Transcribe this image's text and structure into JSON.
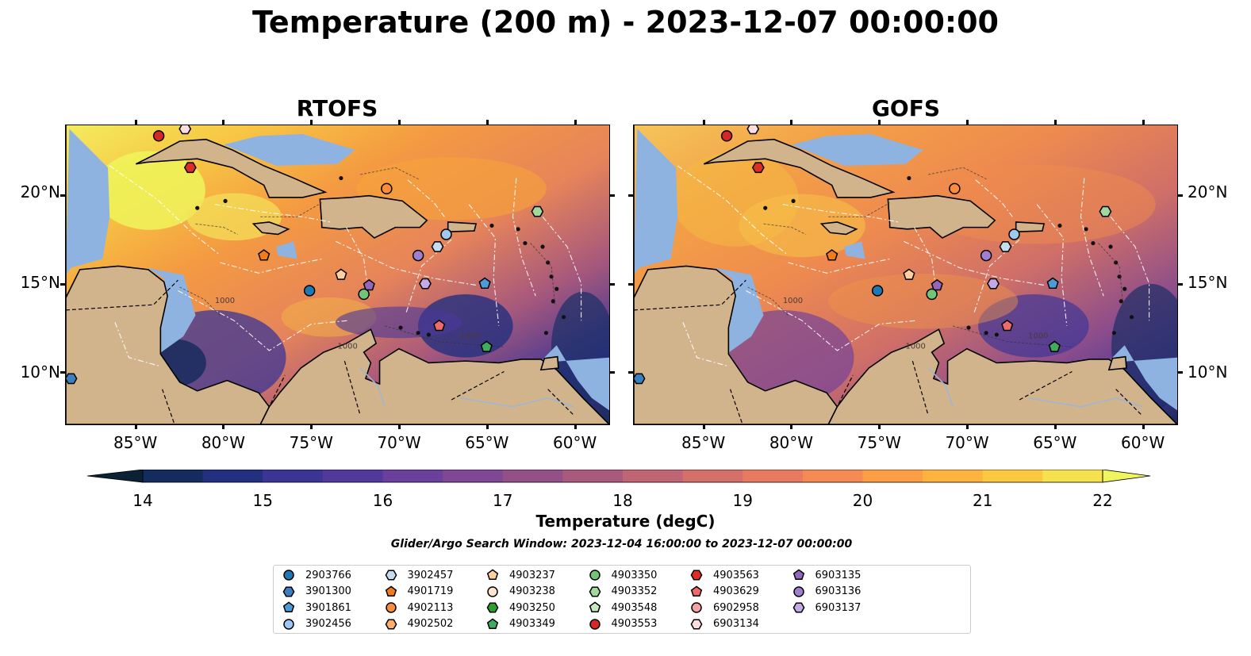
{
  "title": "Temperature (200 m) - 2023-12-07 00:00:00",
  "panels": [
    {
      "title": "RTOFS",
      "variant": "rtofs"
    },
    {
      "title": "GOFS",
      "variant": "gofs"
    }
  ],
  "map": {
    "lon_range": [
      -89,
      -58
    ],
    "lat_range": [
      7,
      24
    ],
    "lat_ticks": [
      "20°N",
      "15°N",
      "10°N"
    ],
    "lon_ticks": [
      "85°W",
      "80°W",
      "75°W",
      "70°W",
      "65°W",
      "60°W"
    ],
    "land_color": "#d2b48c",
    "shelf_color": "#8fb3e0",
    "contour_label": "1000"
  },
  "colorbar": {
    "label": "Temperature (degC)",
    "min": 14,
    "max": 22,
    "ticks": [
      "14",
      "15",
      "16",
      "17",
      "18",
      "19",
      "20",
      "21",
      "22"
    ],
    "colors": [
      "#0b2236",
      "#142c5e",
      "#23307f",
      "#3b3596",
      "#54399c",
      "#6b3f9c",
      "#7f4794",
      "#935088",
      "#a85a7e",
      "#c06574",
      "#d56f6a",
      "#e67b5f",
      "#f38b52",
      "#fb9e45",
      "#fdb33d",
      "#fbc93f",
      "#f5e14e",
      "#f0f55f"
    ]
  },
  "search_window": "Glider/Argo Search Window: 2023-12-04 16:00:00 to 2023-12-07 00:00:00",
  "legend": [
    {
      "id": "2903766",
      "shape": "circle",
      "color": "#1f77b4"
    },
    {
      "id": "3901300",
      "shape": "hexagon",
      "color": "#3a7fc0"
    },
    {
      "id": "3901861",
      "shape": "pentagon",
      "color": "#4d9ad6"
    },
    {
      "id": "3902456",
      "shape": "circle",
      "color": "#9ec8f0"
    },
    {
      "id": "3902457",
      "shape": "hexagon",
      "color": "#c6dbef"
    },
    {
      "id": "4901719",
      "shape": "pentagon",
      "color": "#f07c1a"
    },
    {
      "id": "4902113",
      "shape": "circle",
      "color": "#fd8d3c"
    },
    {
      "id": "4902502",
      "shape": "hexagon",
      "color": "#fdae6b"
    },
    {
      "id": "4903237",
      "shape": "pentagon",
      "color": "#fdd0a2"
    },
    {
      "id": "4903238",
      "shape": "circle",
      "color": "#fee6ce"
    },
    {
      "id": "4903250",
      "shape": "hexagon",
      "color": "#2ca02c"
    },
    {
      "id": "4903349",
      "shape": "pentagon",
      "color": "#41ab5d"
    },
    {
      "id": "4903350",
      "shape": "circle",
      "color": "#74c476"
    },
    {
      "id": "4903352",
      "shape": "hexagon",
      "color": "#a1d99b"
    },
    {
      "id": "4903548",
      "shape": "pentagon",
      "color": "#c7e9c0"
    },
    {
      "id": "4903553",
      "shape": "circle",
      "color": "#d62728"
    },
    {
      "id": "4903563",
      "shape": "hexagon",
      "color": "#de2d26"
    },
    {
      "id": "4903629",
      "shape": "pentagon",
      "color": "#ef6b6b"
    },
    {
      "id": "6902958",
      "shape": "circle",
      "color": "#f4a3a3"
    },
    {
      "id": "6903134",
      "shape": "hexagon",
      "color": "#fcdede"
    },
    {
      "id": "6903135",
      "shape": "pentagon",
      "color": "#9467bd"
    },
    {
      "id": "6903136",
      "shape": "circle",
      "color": "#a17fd0"
    },
    {
      "id": "6903137",
      "shape": "hexagon",
      "color": "#c5a8e8"
    }
  ],
  "floats": [
    {
      "id": "4903553",
      "lon": -83.7,
      "lat": 23.4
    },
    {
      "id": "6903134",
      "lon": -82.2,
      "lat": 23.8
    },
    {
      "id": "4903563",
      "lon": -81.9,
      "lat": 21.6
    },
    {
      "id": "4902113",
      "lon": -70.7,
      "lat": 20.4
    },
    {
      "id": "4903352",
      "lon": -62.1,
      "lat": 19.1
    },
    {
      "id": "3902456",
      "lon": -67.3,
      "lat": 17.8
    },
    {
      "id": "3902457",
      "lon": -67.8,
      "lat": 17.1
    },
    {
      "id": "6903136",
      "lon": -68.9,
      "lat": 16.6
    },
    {
      "id": "4901719",
      "lon": -77.7,
      "lat": 16.6
    },
    {
      "id": "4903237",
      "lon": -73.3,
      "lat": 15.5
    },
    {
      "id": "6903135",
      "lon": -71.7,
      "lat": 14.9
    },
    {
      "id": "6903137",
      "lon": -68.5,
      "lat": 15.0
    },
    {
      "id": "3901861",
      "lon": -65.1,
      "lat": 15.0
    },
    {
      "id": "2903766",
      "lon": -75.1,
      "lat": 14.6
    },
    {
      "id": "4903350",
      "lon": -72.0,
      "lat": 14.4
    },
    {
      "id": "4903629",
      "lon": -67.7,
      "lat": 12.6
    },
    {
      "id": "4903349",
      "lon": -65.0,
      "lat": 11.4
    },
    {
      "id": "3901300",
      "lon": -88.7,
      "lat": 9.6
    }
  ]
}
